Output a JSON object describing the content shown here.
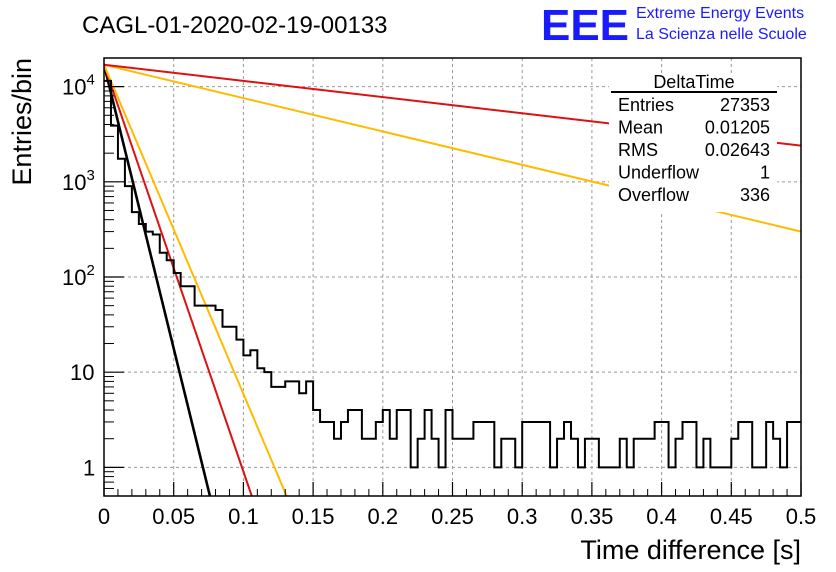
{
  "chart_data": {
    "type": "line",
    "title": "CAGL-01-2020-02-19-00133",
    "xlabel": "Time difference [s]",
    "ylabel": "Entries/bin",
    "xlim": [
      0,
      0.5
    ],
    "ylim": [
      0.5,
      20000
    ],
    "yscale": "log",
    "grid": true,
    "x_ticks": [
      "0",
      "0.05",
      "0.1",
      "0.15",
      "0.2",
      "0.25",
      "0.3",
      "0.35",
      "0.4",
      "0.45",
      "0.5"
    ],
    "y_ticks": [
      {
        "value": 1,
        "base": "1",
        "exp": ""
      },
      {
        "value": 10,
        "base": "10",
        "exp": ""
      },
      {
        "value": 100,
        "base": "10",
        "exp": "2"
      },
      {
        "value": 1000,
        "base": "10",
        "exp": "3"
      },
      {
        "value": 10000,
        "base": "10",
        "exp": "4"
      }
    ],
    "histogram": {
      "bin_width": 0.005,
      "color": "#000000",
      "values": [
        11500,
        3900,
        1750,
        900,
        480,
        360,
        300,
        280,
        180,
        150,
        110,
        80,
        80,
        50,
        50,
        50,
        45,
        30,
        30,
        22,
        15,
        17,
        11,
        10,
        7,
        7,
        8,
        8,
        6,
        8,
        4,
        3,
        3,
        2,
        3,
        4,
        4,
        2,
        2,
        3,
        4,
        2,
        4,
        4,
        1,
        2,
        4,
        2,
        1,
        4,
        2,
        2,
        2,
        3,
        3,
        3,
        1,
        2,
        2,
        1,
        3,
        3,
        3,
        3,
        1,
        2,
        3,
        2,
        1,
        2,
        2,
        1,
        1,
        1,
        2,
        1,
        2,
        2,
        2,
        3,
        3,
        1,
        2,
        3,
        3,
        1,
        2,
        1,
        1,
        1,
        2,
        3,
        3,
        1,
        1,
        3,
        2,
        1,
        3,
        3
      ]
    },
    "fits": [
      {
        "color": "#000000",
        "x0": 0.0,
        "y0": 17000,
        "x1": 0.076,
        "y1": 0.5
      },
      {
        "color": "#dd1111",
        "x0": 0.0,
        "y0": 17000,
        "x1": 0.106,
        "y1": 0.5
      },
      {
        "color": "#ffbb00",
        "x0": 0.0,
        "y0": 17000,
        "x1": 0.131,
        "y1": 0.5
      },
      {
        "color": "#ffbb00",
        "x0": 0.0,
        "y0": 17000,
        "x1": 0.5,
        "y1": 300
      },
      {
        "color": "#dd1111",
        "x0": 0.0,
        "y0": 17000,
        "x1": 0.5,
        "y1": 2400
      }
    ],
    "stats_box": {
      "title": "DeltaTime",
      "rows": [
        {
          "label": "Entries",
          "value": "27353"
        },
        {
          "label": "Mean",
          "value": "0.01205"
        },
        {
          "label": "RMS",
          "value": "0.02643"
        },
        {
          "label": "Underflow",
          "value": "1"
        },
        {
          "label": "Overflow",
          "value": "336"
        }
      ]
    }
  },
  "logo": {
    "letters": "EEE",
    "line1": "Extreme Energy Events",
    "line2": "La Scienza nelle Scuole"
  }
}
